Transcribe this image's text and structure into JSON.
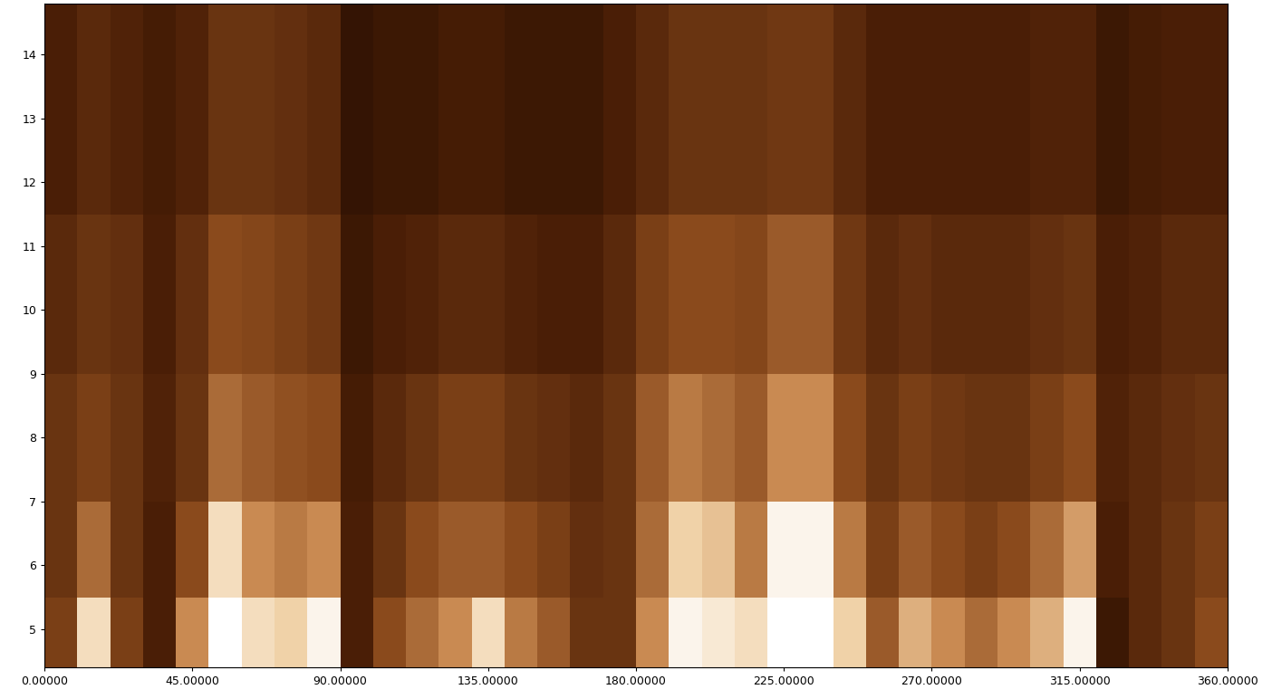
{
  "chart_data": {
    "type": "heatmap",
    "x": [
      0,
      10,
      20,
      30,
      40,
      50,
      60,
      70,
      80,
      90,
      100,
      110,
      120,
      130,
      140,
      150,
      160,
      170,
      180,
      190,
      200,
      210,
      220,
      230,
      240,
      250,
      260,
      270,
      280,
      290,
      300,
      310,
      320,
      330,
      340,
      350,
      360
    ],
    "y": [
      4.4,
      5.5,
      7,
      9,
      11.5,
      14.8
    ],
    "cells": [
      [
        0.35,
        0.3,
        0.3,
        0.25,
        0.2
      ],
      [
        0.85,
        0.5,
        0.35,
        0.3,
        0.25
      ],
      [
        0.35,
        0.3,
        0.3,
        0.28,
        0.22
      ],
      [
        0.2,
        0.2,
        0.22,
        0.2,
        0.18
      ],
      [
        0.6,
        0.4,
        0.3,
        0.28,
        0.22
      ],
      [
        1.0,
        0.85,
        0.5,
        0.4,
        0.3
      ],
      [
        0.85,
        0.6,
        0.45,
        0.38,
        0.3
      ],
      [
        0.8,
        0.55,
        0.42,
        0.35,
        0.28
      ],
      [
        0.95,
        0.6,
        0.4,
        0.32,
        0.25
      ],
      [
        0.2,
        0.2,
        0.18,
        0.15,
        0.12
      ],
      [
        0.4,
        0.3,
        0.25,
        0.2,
        0.15
      ],
      [
        0.5,
        0.4,
        0.3,
        0.22,
        0.15
      ],
      [
        0.6,
        0.45,
        0.35,
        0.25,
        0.18
      ],
      [
        0.85,
        0.45,
        0.35,
        0.25,
        0.18
      ],
      [
        0.55,
        0.4,
        0.3,
        0.22,
        0.15
      ],
      [
        0.45,
        0.35,
        0.28,
        0.2,
        0.15
      ],
      [
        0.3,
        0.28,
        0.25,
        0.2,
        0.15
      ],
      [
        0.3,
        0.3,
        0.3,
        0.25,
        0.2
      ],
      [
        0.6,
        0.5,
        0.45,
        0.35,
        0.25
      ],
      [
        0.95,
        0.8,
        0.55,
        0.4,
        0.3
      ],
      [
        0.9,
        0.75,
        0.5,
        0.4,
        0.3
      ],
      [
        0.85,
        0.55,
        0.45,
        0.38,
        0.3
      ],
      [
        1.0,
        0.95,
        0.6,
        0.45,
        0.32
      ],
      [
        1.0,
        0.95,
        0.6,
        0.45,
        0.32
      ],
      [
        0.8,
        0.55,
        0.4,
        0.32,
        0.25
      ],
      [
        0.45,
        0.35,
        0.3,
        0.25,
        0.2
      ],
      [
        0.7,
        0.45,
        0.35,
        0.28,
        0.2
      ],
      [
        0.6,
        0.4,
        0.32,
        0.25,
        0.2
      ],
      [
        0.5,
        0.35,
        0.3,
        0.25,
        0.2
      ],
      [
        0.6,
        0.4,
        0.3,
        0.25,
        0.2
      ],
      [
        0.7,
        0.5,
        0.35,
        0.28,
        0.22
      ],
      [
        0.95,
        0.65,
        0.4,
        0.3,
        0.22
      ],
      [
        0.15,
        0.2,
        0.22,
        0.2,
        0.15
      ],
      [
        0.25,
        0.25,
        0.25,
        0.22,
        0.18
      ],
      [
        0.3,
        0.3,
        0.28,
        0.25,
        0.2
      ],
      [
        0.4,
        0.35,
        0.3,
        0.25,
        0.2
      ]
    ],
    "clim": [
      0,
      1
    ],
    "xlim": [
      0,
      360
    ],
    "ylim": [
      4.4,
      14.8
    ],
    "xticks": [
      {
        "value": 0,
        "label": "0.00000"
      },
      {
        "value": 45,
        "label": "45.00000"
      },
      {
        "value": 90,
        "label": "90.00000"
      },
      {
        "value": 135,
        "label": "135.00000"
      },
      {
        "value": 180,
        "label": "180.00000"
      },
      {
        "value": 225,
        "label": "225.00000"
      },
      {
        "value": 270,
        "label": "270.00000"
      },
      {
        "value": 315,
        "label": "315.00000"
      },
      {
        "value": 360,
        "label": "360.00000"
      }
    ],
    "yticks": [
      5,
      6,
      7,
      8,
      9,
      10,
      11,
      12,
      13,
      14
    ]
  }
}
